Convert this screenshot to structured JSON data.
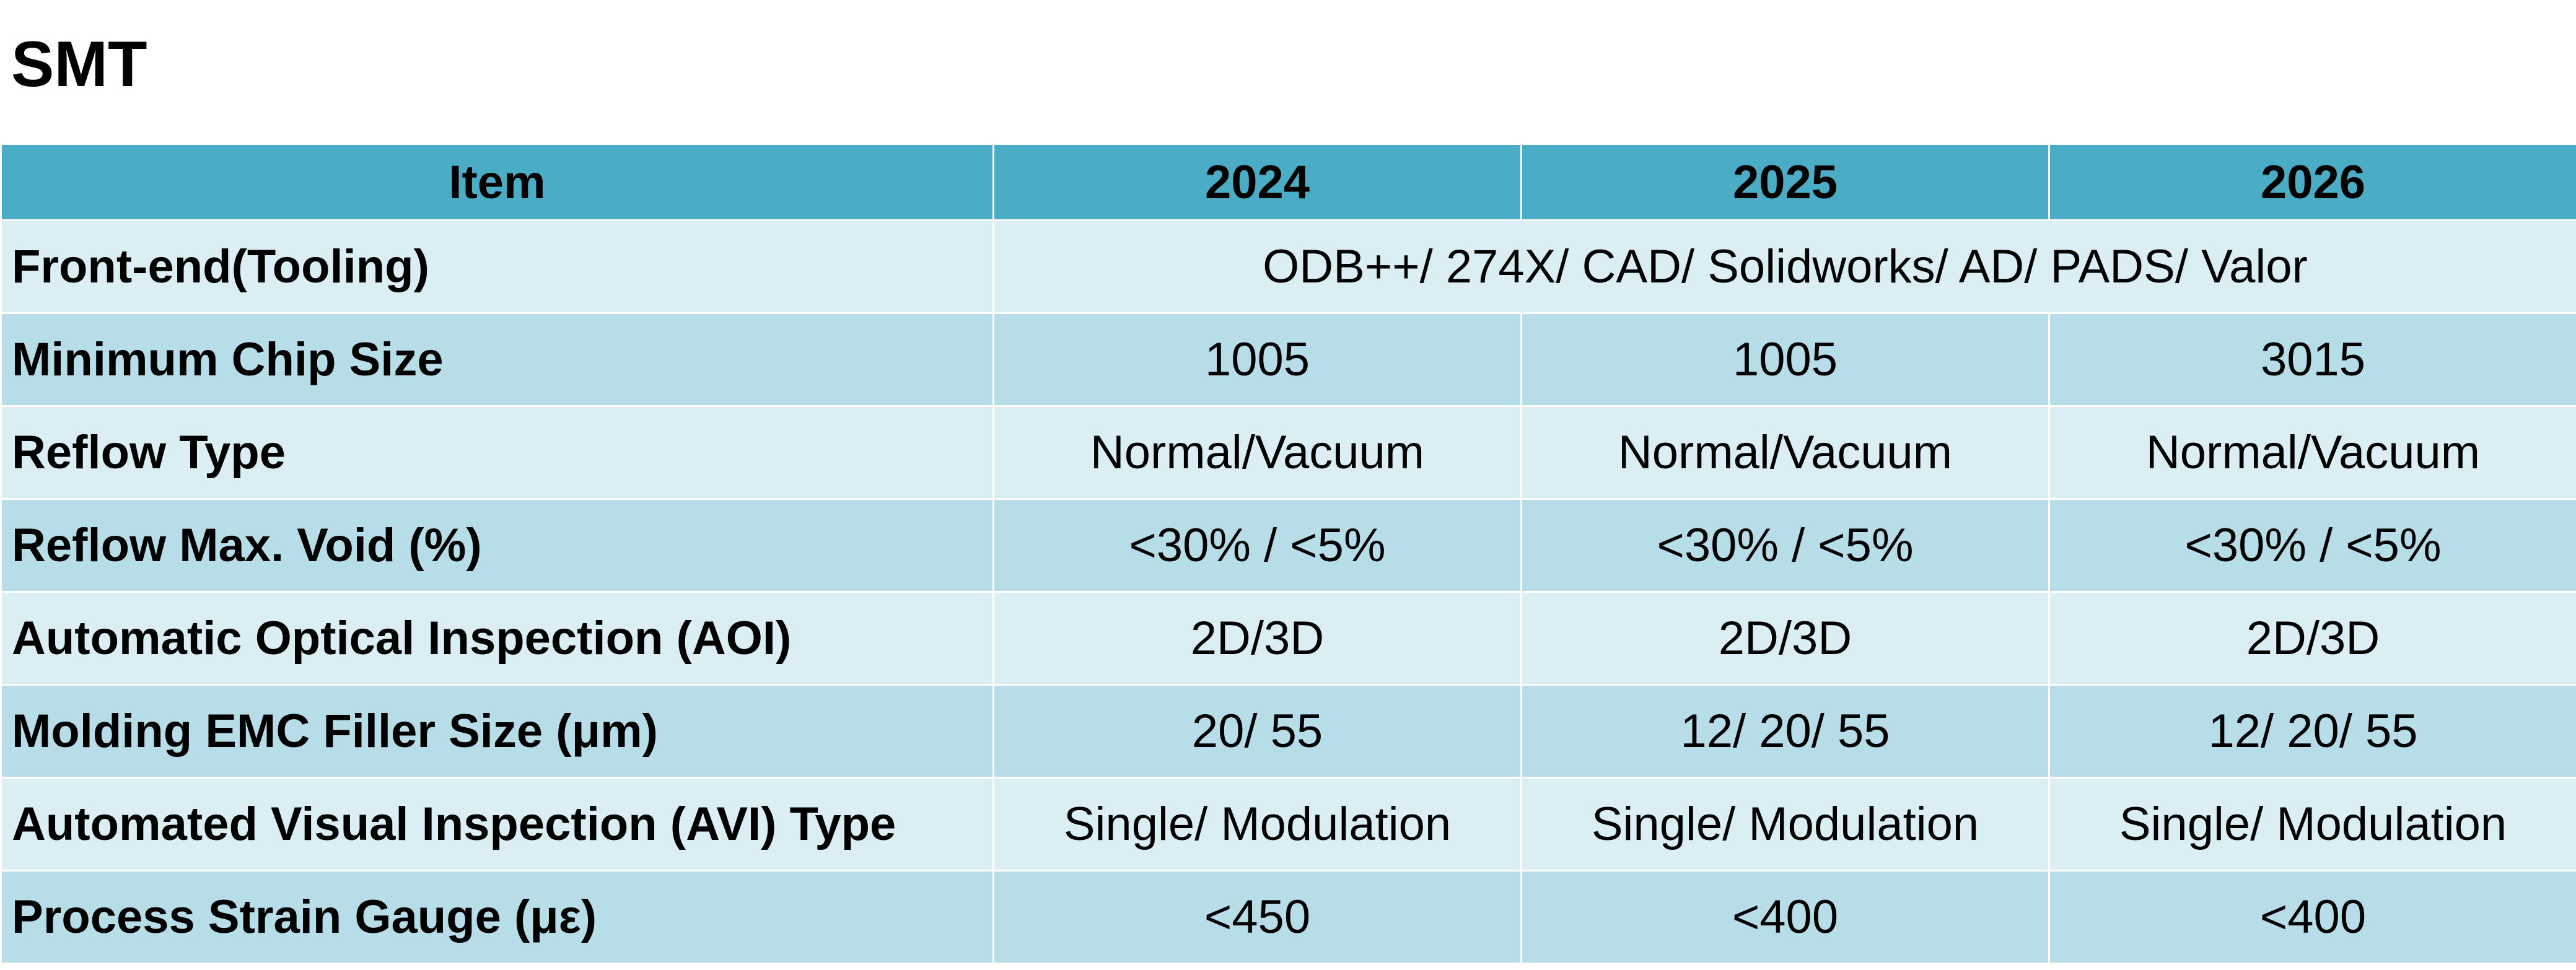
{
  "title": "SMT",
  "table": {
    "headers": [
      "Item",
      "2024",
      "2025",
      "2026"
    ],
    "rows": [
      {
        "item": "Front-end(Tooling)",
        "span_all": "ODB++/ 274X/ CAD/ Solidworks/ AD/ PADS/ Valor"
      },
      {
        "item": "Minimum Chip Size",
        "values": [
          "1005",
          "1005",
          "3015"
        ]
      },
      {
        "item": "Reflow Type",
        "values": [
          "Normal/Vacuum",
          "Normal/Vacuum",
          "Normal/Vacuum"
        ]
      },
      {
        "item": "Reflow Max. Void (%)",
        "values": [
          "<30% / <5%",
          "<30% / <5%",
          "<30% / <5%"
        ]
      },
      {
        "item": "Automatic Optical Inspection (AOI)",
        "values": [
          "2D/3D",
          "2D/3D",
          "2D/3D"
        ]
      },
      {
        "item": "Molding EMC Filler Size (μm)",
        "values": [
          "20/ 55",
          "12/ 20/ 55",
          "12/ 20/ 55"
        ]
      },
      {
        "item": "Automated Visual Inspection (AVI) Type",
        "values": [
          "Single/ Modulation",
          "Single/ Modulation",
          "Single/ Modulation"
        ]
      },
      {
        "item": "Process Strain Gauge (με)",
        "values": [
          "<450",
          "<400",
          "<400"
        ]
      }
    ]
  }
}
